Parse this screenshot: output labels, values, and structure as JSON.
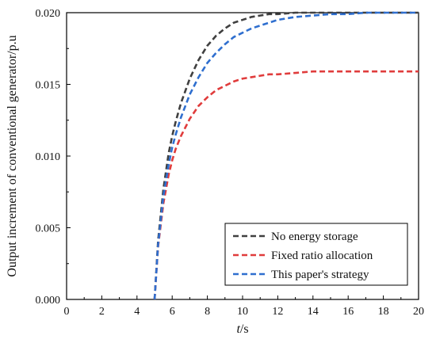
{
  "chart_data": {
    "type": "line",
    "title": "",
    "xlabel_italic": "t",
    "xlabel_unit": "/s",
    "ylabel": "Output increment of conventional generator/p.u",
    "xlim": [
      0,
      20
    ],
    "ylim": [
      0,
      0.02
    ],
    "xticks": [
      "0",
      "2",
      "4",
      "6",
      "8",
      "10",
      "12",
      "14",
      "16",
      "18",
      "20"
    ],
    "yticks": [
      "0.000",
      "0.005",
      "0.010",
      "0.015",
      "0.020"
    ],
    "grid": false,
    "legend_position": "bottom-right",
    "series": [
      {
        "name": "No energy storage",
        "color": "#404040",
        "dash": "dashed",
        "x": [
          5.0,
          5.2,
          5.5,
          5.8,
          6.0,
          6.2,
          6.5,
          7.0,
          7.5,
          8.0,
          8.5,
          9.0,
          9.5,
          10.0,
          10.5,
          11.0,
          11.5,
          12.0,
          13.0,
          14.0,
          15.0,
          16.0,
          17.0,
          18.0,
          19.0,
          20.0
        ],
        "y": [
          0.0,
          0.0041,
          0.0077,
          0.0102,
          0.0114,
          0.0124,
          0.0137,
          0.0154,
          0.0167,
          0.0177,
          0.0184,
          0.0189,
          0.0193,
          0.0195,
          0.0197,
          0.0198,
          0.0199,
          0.0199,
          0.02,
          0.02,
          0.02,
          0.02,
          0.02,
          0.02,
          0.02,
          0.02
        ]
      },
      {
        "name": "Fixed ratio allocation",
        "color": "#e03c3c",
        "dash": "dashed",
        "x": [
          5.0,
          5.2,
          5.5,
          5.8,
          6.0,
          6.2,
          6.5,
          7.0,
          7.5,
          8.0,
          8.5,
          9.0,
          9.5,
          10.0,
          10.5,
          11.0,
          11.5,
          12.0,
          13.0,
          14.0,
          15.0,
          16.0,
          17.0,
          18.0,
          19.0,
          20.0
        ],
        "y": [
          0.0,
          0.0037,
          0.0067,
          0.0087,
          0.0097,
          0.0105,
          0.0114,
          0.0126,
          0.0135,
          0.0141,
          0.0146,
          0.0149,
          0.0152,
          0.0154,
          0.0155,
          0.0156,
          0.0157,
          0.0157,
          0.0158,
          0.0159,
          0.0159,
          0.0159,
          0.0159,
          0.0159,
          0.0159,
          0.0159
        ]
      },
      {
        "name": "This paper's strategy",
        "color": "#2f6fcf",
        "dash": "dashed",
        "x": [
          5.0,
          5.2,
          5.5,
          5.8,
          6.0,
          6.2,
          6.5,
          7.0,
          7.5,
          8.0,
          8.5,
          9.0,
          9.5,
          10.0,
          10.5,
          11.0,
          11.5,
          12.0,
          13.0,
          14.0,
          15.0,
          16.0,
          17.0,
          18.0,
          19.0,
          20.0
        ],
        "y": [
          0.0,
          0.0038,
          0.0072,
          0.0094,
          0.0106,
          0.0115,
          0.0127,
          0.0143,
          0.0155,
          0.0165,
          0.0172,
          0.0178,
          0.0183,
          0.0186,
          0.0189,
          0.0191,
          0.0193,
          0.0195,
          0.0197,
          0.0198,
          0.0199,
          0.0199,
          0.02,
          0.02,
          0.02,
          0.02
        ]
      }
    ]
  }
}
